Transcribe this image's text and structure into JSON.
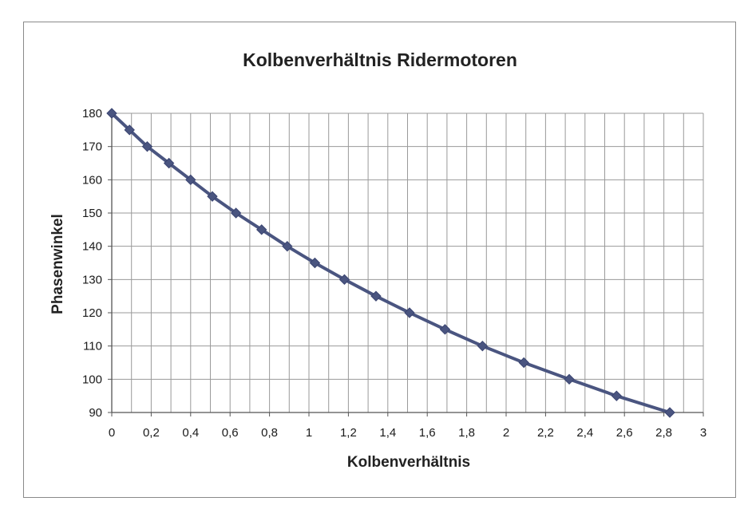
{
  "chart_data": {
    "type": "line",
    "title": "Kolbenverhältnis Ridermotoren",
    "xlabel": "Kolbenverhältnis",
    "ylabel": "Phasenwinkel",
    "xlim": [
      0,
      3
    ],
    "ylim": [
      90,
      180
    ],
    "x_ticks": [
      "0",
      "0,2",
      "0,4",
      "0,6",
      "0,8",
      "1",
      "1,2",
      "1,4",
      "1,6",
      "1,8",
      "2",
      "2,2",
      "2,4",
      "2,6",
      "2,8",
      "3"
    ],
    "x_tick_values": [
      0,
      0.2,
      0.4,
      0.6,
      0.8,
      1.0,
      1.2,
      1.4,
      1.6,
      1.8,
      2.0,
      2.2,
      2.4,
      2.6,
      2.8,
      3.0
    ],
    "y_ticks": [
      "90",
      "100",
      "110",
      "120",
      "130",
      "140",
      "150",
      "160",
      "170",
      "180"
    ],
    "y_tick_values": [
      90,
      100,
      110,
      120,
      130,
      140,
      150,
      160,
      170,
      180
    ],
    "grid": true,
    "x_minor_grid_step": 0.1,
    "legend": "none",
    "series": [
      {
        "color": "#4a5580",
        "marker": "diamond",
        "x": [
          0,
          0.09,
          0.18,
          0.29,
          0.4,
          0.51,
          0.63,
          0.76,
          0.89,
          1.03,
          1.18,
          1.34,
          1.51,
          1.69,
          1.88,
          2.09,
          2.32,
          2.56,
          2.83
        ],
        "y": [
          180,
          175,
          170,
          165,
          160,
          155,
          150,
          145,
          140,
          135,
          130,
          125,
          120,
          115,
          110,
          105,
          100,
          95,
          90
        ]
      }
    ]
  }
}
